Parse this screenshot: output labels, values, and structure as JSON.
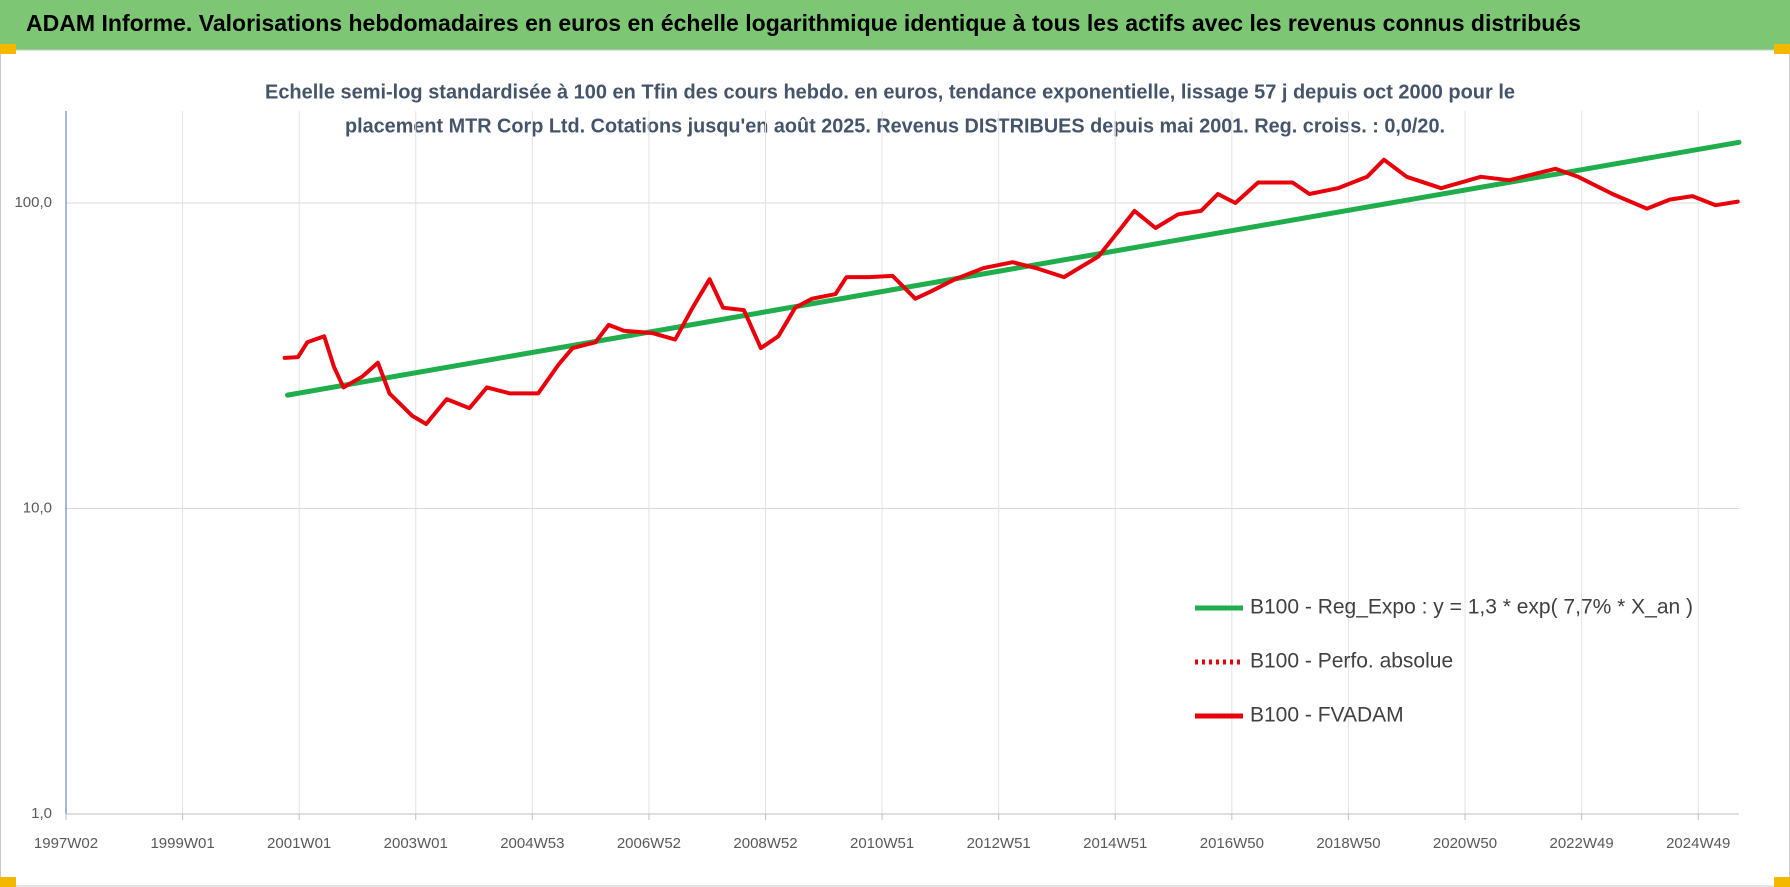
{
  "chart_data": {
    "type": "line",
    "title": "ADAM Informe. Valorisations hebdomadaires en euros en échelle logarithmique identique à tous les actifs avec les revenus connus distribués",
    "subtitle": [
      "Echelle semi-log standardisée à 100 en Tfin des cours hebdo. en euros, tendance exponentielle, lissage 57 j depuis oct 2000 pour le",
      "placement MTR Corp Ltd. Cotations jusqu'en août 2025. Revenus DISTRIBUES depuis mai 2001. Reg. croiss. : 0,0/20."
    ],
    "log_scale": true,
    "grid": true,
    "legend": "lower right",
    "xlim": [
      1997.0,
      2025.7
    ],
    "ylim": [
      1,
      200
    ],
    "xticks": [
      {
        "value": 1997.0,
        "label": "1997W02"
      },
      {
        "value": 1999.0,
        "label": "1999W01"
      },
      {
        "value": 2001.0,
        "label": "2001W01"
      },
      {
        "value": 2003.0,
        "label": "2003W01"
      },
      {
        "value": 2005.0,
        "label": "2004W53"
      },
      {
        "value": 2007.0,
        "label": "2006W52"
      },
      {
        "value": 2009.0,
        "label": "2008W52"
      },
      {
        "value": 2011.0,
        "label": "2010W51"
      },
      {
        "value": 2013.0,
        "label": "2012W51"
      },
      {
        "value": 2015.0,
        "label": "2014W51"
      },
      {
        "value": 2017.0,
        "label": "2016W50"
      },
      {
        "value": 2019.0,
        "label": "2018W50"
      },
      {
        "value": 2021.0,
        "label": "2020W50"
      },
      {
        "value": 2023.0,
        "label": "2022W49"
      },
      {
        "value": 2025.0,
        "label": "2024W49"
      }
    ],
    "yticks": [
      {
        "value": 1,
        "label": "1,0"
      },
      {
        "value": 10,
        "label": "10,0"
      },
      {
        "value": 100,
        "label": "100,0"
      }
    ],
    "series": [
      {
        "name": "B100 - Reg_Expo : y = 1,3 * exp( 7,7% *  X_an )",
        "color": "#1fae4b",
        "style": "solid",
        "x": [
          2000.8,
          2025.7
        ],
        "values": [
          23.5,
          158
        ]
      },
      {
        "name": "B100 - Perfo. absolue",
        "color": "#e8000b",
        "style": "dotted",
        "x": [],
        "values": []
      },
      {
        "name": "B100 - FVADAM",
        "color": "#e8000b",
        "style": "solid",
        "x": [
          2000.75,
          2000.98,
          2001.14,
          2001.43,
          2001.6,
          2001.76,
          2002.08,
          2002.35,
          2002.55,
          2002.94,
          2003.18,
          2003.53,
          2003.92,
          2004.22,
          2004.61,
          2005.1,
          2005.45,
          2005.69,
          2006.08,
          2006.31,
          2006.57,
          2007.06,
          2007.45,
          2007.75,
          2008.04,
          2008.27,
          2008.63,
          2008.92,
          2009.22,
          2009.51,
          2009.8,
          2010.2,
          2010.39,
          2010.78,
          2011.18,
          2011.57,
          2011.86,
          2012.25,
          2012.75,
          2013.24,
          2013.63,
          2014.12,
          2014.71,
          2015.1,
          2015.33,
          2015.69,
          2016.08,
          2016.47,
          2016.76,
          2017.06,
          2017.45,
          2018.04,
          2018.33,
          2018.82,
          2019.32,
          2019.61,
          2020.0,
          2020.59,
          2021.27,
          2021.76,
          2022.55,
          2022.94,
          2023.53,
          2024.12,
          2024.51,
          2024.9,
          2025.3,
          2025.68
        ],
        "values": [
          31.1,
          31.3,
          35,
          36.6,
          29,
          24.9,
          27,
          30,
          23.8,
          20.1,
          18.9,
          22.8,
          21.3,
          24.9,
          23.8,
          23.8,
          29.6,
          33.5,
          35,
          39.9,
          38.2,
          37.5,
          35.7,
          45.4,
          56.3,
          45.4,
          44.6,
          33.5,
          36.6,
          45.4,
          48.6,
          50.3,
          57.2,
          57.2,
          57.7,
          48.6,
          51.6,
          56.3,
          61.3,
          64,
          61.3,
          57.2,
          66.8,
          82.8,
          94.2,
          82.8,
          91.8,
          94.2,
          107,
          100,
          116.7,
          116.7,
          107,
          111.8,
          121.8,
          138.6,
          121.8,
          111.8,
          121.8,
          118.7,
          129.4,
          121.8,
          107,
          95.8,
          102.6,
          105.3,
          98.3,
          101
        ]
      }
    ]
  }
}
